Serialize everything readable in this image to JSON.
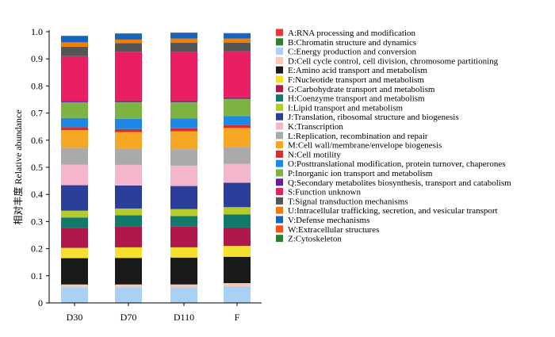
{
  "chart_data": {
    "type": "bar",
    "stacked": true,
    "ylabel": "相对丰度  Relative abundance",
    "xlabel": "",
    "ylim": [
      0,
      1.0
    ],
    "yticks": [
      "0",
      "0.1",
      "0.2",
      "0.3",
      "0.4",
      "0.5",
      "0.6",
      "0.7",
      "0.8",
      "0.9",
      "1.0"
    ],
    "categories": [
      "D30",
      "D70",
      "D110",
      "F"
    ],
    "legend_position": "right",
    "series": [
      {
        "name": "A:RNA processing and modification",
        "color": "#e53935",
        "values": [
          0.001,
          0.001,
          0.001,
          0.001
        ]
      },
      {
        "name": "B:Chromatin structure and dynamics",
        "color": "#2e7d32",
        "values": [
          0.001,
          0.001,
          0.001,
          0.001
        ]
      },
      {
        "name": "C:Energy production and conversion",
        "color": "#a9d0f5",
        "values": [
          0.056,
          0.056,
          0.055,
          0.06
        ]
      },
      {
        "name": "D:Cell cycle control, cell division, chromosome partitioning",
        "color": "#f8c8b0",
        "values": [
          0.01,
          0.01,
          0.011,
          0.011
        ]
      },
      {
        "name": "E:Amino acid transport and metabolism",
        "color": "#1a1a1a",
        "values": [
          0.097,
          0.098,
          0.099,
          0.097
        ]
      },
      {
        "name": "F:Nucleotide transport and metabolism",
        "color": "#f5e030",
        "values": [
          0.038,
          0.039,
          0.038,
          0.04
        ]
      },
      {
        "name": "G:Carbohydrate transport and metabolism",
        "color": "#b0184c",
        "values": [
          0.072,
          0.078,
          0.076,
          0.068
        ]
      },
      {
        "name": "H:Coenzyme transport and metabolism",
        "color": "#127a6a",
        "values": [
          0.04,
          0.04,
          0.039,
          0.048
        ]
      },
      {
        "name": "I:Lipid transport and metabolism",
        "color": "#b5cc2a",
        "values": [
          0.025,
          0.025,
          0.026,
          0.027
        ]
      },
      {
        "name": "J:Translation, ribosomal structure and biogenesis",
        "color": "#2b3f9a",
        "values": [
          0.094,
          0.085,
          0.085,
          0.09
        ]
      },
      {
        "name": "K:Transcription",
        "color": "#f4b6cd",
        "values": [
          0.076,
          0.076,
          0.075,
          0.07
        ]
      },
      {
        "name": "L:Replication, recombination and repair",
        "color": "#aaaaaa",
        "values": [
          0.062,
          0.06,
          0.061,
          0.062
        ]
      },
      {
        "name": "M:Cell wall/membrane/envelope biogenesis",
        "color": "#f5a623",
        "values": [
          0.065,
          0.061,
          0.066,
          0.07
        ]
      },
      {
        "name": "N:Cell motility",
        "color": "#d32f2f",
        "values": [
          0.011,
          0.011,
          0.011,
          0.011
        ]
      },
      {
        "name": "O:Posttranslational modification, protein turnover, chaperones",
        "color": "#1e88e5",
        "values": [
          0.034,
          0.038,
          0.036,
          0.033
        ]
      },
      {
        "name": "P:Inorganic ion transport and metabolism",
        "color": "#7cb342",
        "values": [
          0.058,
          0.062,
          0.061,
          0.064
        ]
      },
      {
        "name": "Q:Secondary metabolites biosynthesis, transport and catabolism",
        "color": "#6a1b9a",
        "values": [
          0.005,
          0.005,
          0.005,
          0.005
        ]
      },
      {
        "name": "S:Function unknown",
        "color": "#e91e63",
        "values": [
          0.165,
          0.18,
          0.179,
          0.17
        ]
      },
      {
        "name": "T:Signal transduction mechanisms",
        "color": "#555555",
        "values": [
          0.035,
          0.032,
          0.034,
          0.032
        ]
      },
      {
        "name": "U:Intracellular trafficking, secretion, and vesicular transport",
        "color": "#f57c00",
        "values": [
          0.016,
          0.013,
          0.016,
          0.015
        ]
      },
      {
        "name": "V:Defense mechanisms",
        "color": "#1565c0",
        "values": [
          0.023,
          0.022,
          0.021,
          0.019
        ]
      },
      {
        "name": "W:Extracellular structures",
        "color": "#f4511e",
        "values": [
          0.0005,
          0.0005,
          0.0005,
          0.0005
        ]
      },
      {
        "name": "Z:Cytoskeleton",
        "color": "#2e7d32",
        "values": [
          0.0005,
          0.0005,
          0.0005,
          0.0005
        ]
      }
    ]
  }
}
